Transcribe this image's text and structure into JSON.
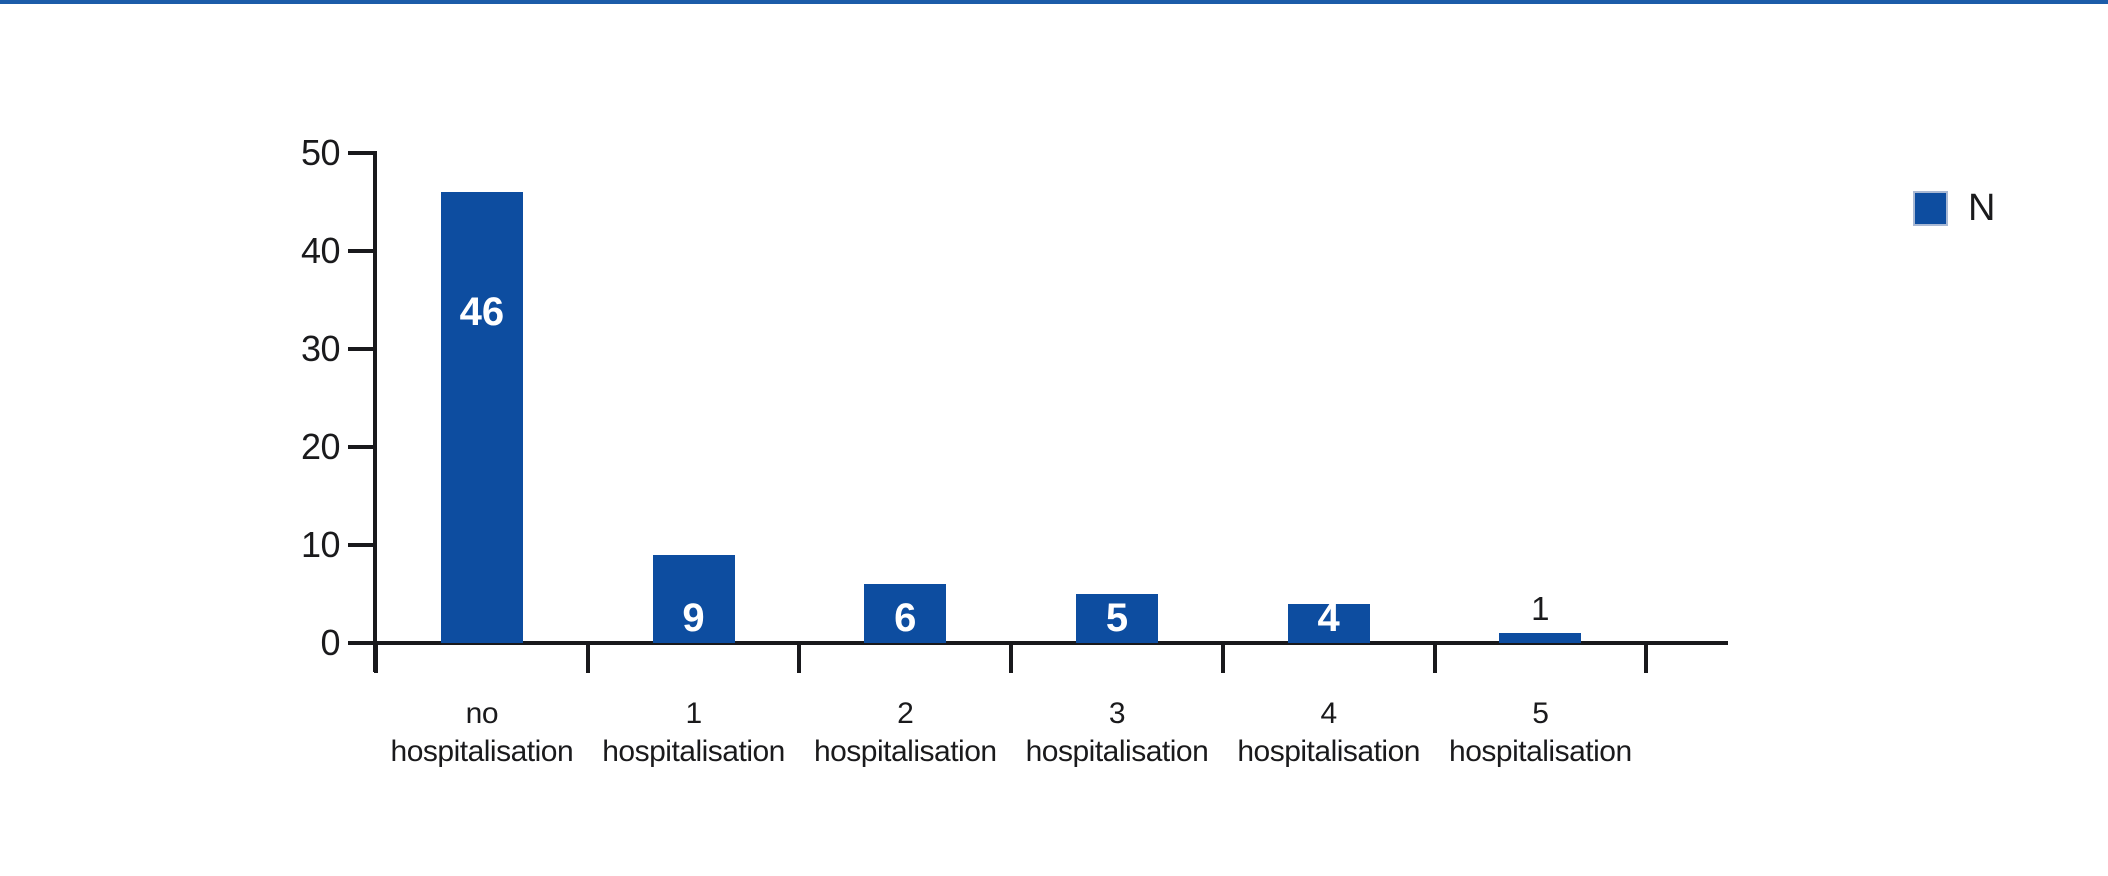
{
  "page": {
    "background_color": "#ffffff",
    "top_rule_color": "#1c5ca9"
  },
  "chart_data": {
    "type": "bar",
    "title": "",
    "xlabel": "",
    "ylabel": "",
    "categories": [
      {
        "line1": "no",
        "line2": "hospitalisation"
      },
      {
        "line1": "1",
        "line2": "hospitalisation"
      },
      {
        "line1": "2",
        "line2": "hospitalisation"
      },
      {
        "line1": "3",
        "line2": "hospitalisation"
      },
      {
        "line1": "4",
        "line2": "hospitalisation"
      },
      {
        "line1": "5",
        "line2": "hospitalisation"
      }
    ],
    "series": [
      {
        "name": "N",
        "values": [
          46,
          9,
          6,
          5,
          4,
          1
        ]
      }
    ],
    "data_labels": [
      "46",
      "9",
      "6",
      "5",
      "4",
      "1"
    ],
    "yticks": [
      "0",
      "10",
      "20",
      "30",
      "40",
      "50"
    ],
    "ylim": [
      0,
      50
    ],
    "grid": false,
    "legend_position": "right",
    "bar_color": "#0d4da0",
    "inside_label_color": "#ffffff",
    "outside_label_color": "#1a1a1c",
    "axis_color": "#19191c",
    "legend_swatch_border_color": "#a9b9d4"
  }
}
